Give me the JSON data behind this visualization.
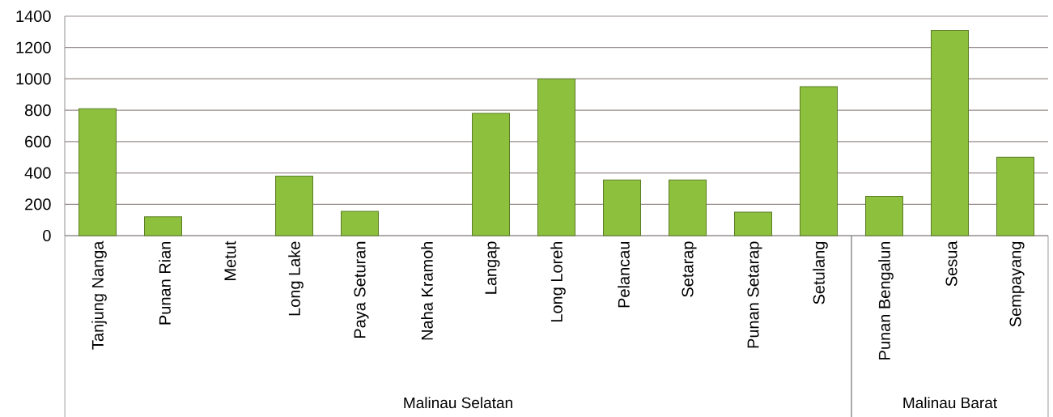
{
  "chart_data": {
    "type": "bar",
    "categories": [
      "Tanjung Nanga",
      "Punan Rian",
      "Metut",
      "Long Lake",
      "Paya Seturan",
      "Naha Kramoh",
      "Langap",
      "Long Loreh",
      "Pelancau",
      "Setarap",
      "Punan Setarap",
      "Setulang",
      "Punan Bengalun",
      "Sesua",
      "Sempayang"
    ],
    "values": [
      810,
      120,
      null,
      380,
      155,
      null,
      780,
      1000,
      355,
      355,
      150,
      950,
      250,
      1310,
      500
    ],
    "color": "#8dc03c",
    "ylim": [
      0,
      1400
    ],
    "yticks": [
      0,
      200,
      400,
      600,
      800,
      1000,
      1200,
      1400
    ],
    "grid": "y",
    "annotations": [
      "Malinau Selatan",
      "Malinau Barat"
    ]
  }
}
